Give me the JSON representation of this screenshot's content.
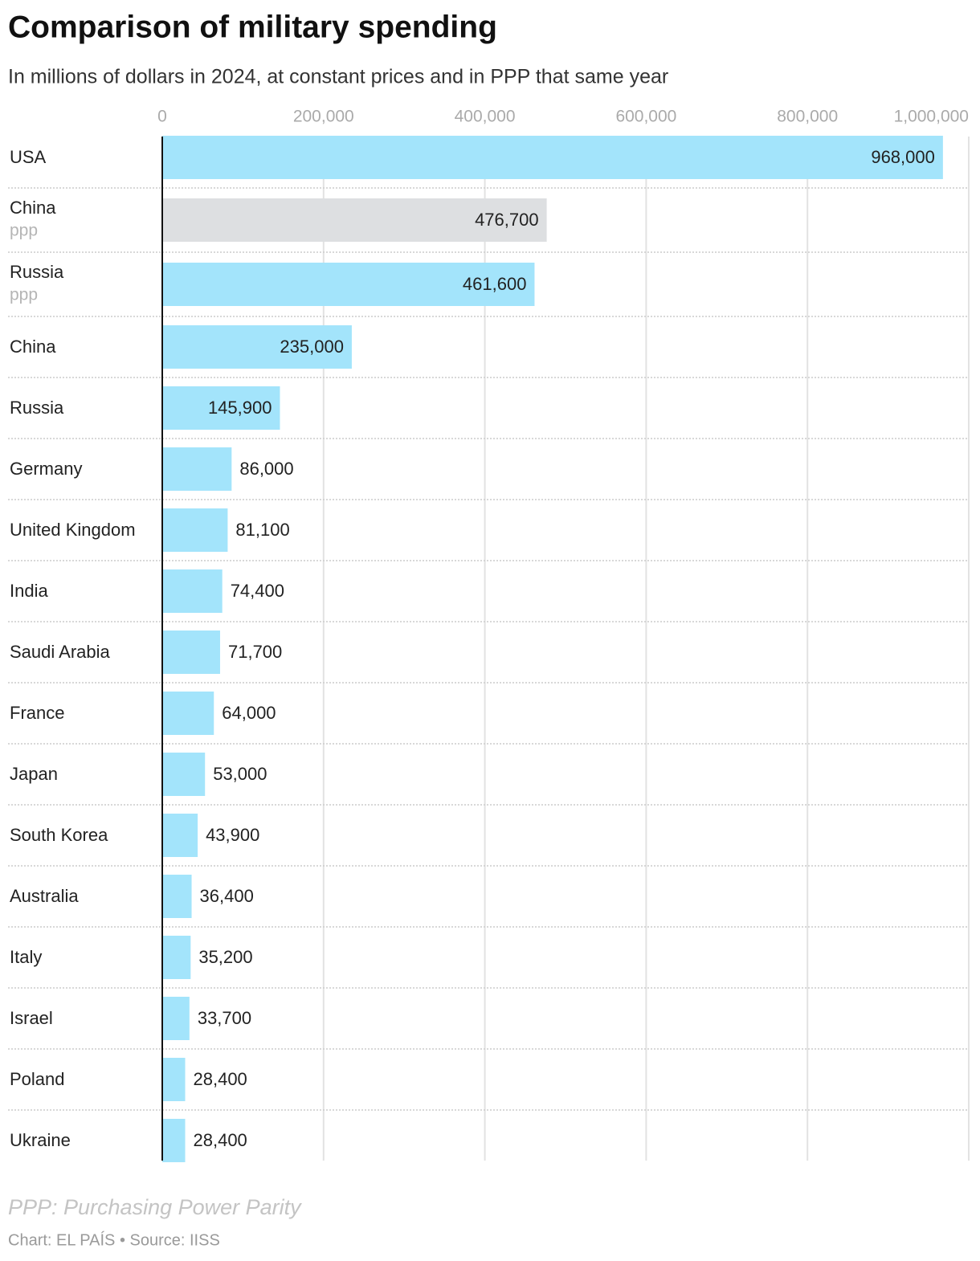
{
  "chart_data": {
    "type": "bar",
    "orientation": "horizontal",
    "title": "Comparison of military spending",
    "subtitle": "In millions of dollars in 2024, at constant prices and in PPP that same year",
    "categories": [
      "USA",
      "China",
      "Russia",
      "China",
      "Russia",
      "Germany",
      "United Kingdom",
      "India",
      "Saudi Arabia",
      "France",
      "Japan",
      "South Korea",
      "Australia",
      "Italy",
      "Israel",
      "Poland",
      "Ukraine"
    ],
    "sublabels": [
      null,
      "ppp",
      "ppp",
      null,
      null,
      null,
      null,
      null,
      null,
      null,
      null,
      null,
      null,
      null,
      null,
      null,
      null
    ],
    "values": [
      968000,
      476700,
      461600,
      235000,
      145900,
      86000,
      81100,
      74400,
      71700,
      64000,
      53000,
      43900,
      36400,
      35200,
      33700,
      28400,
      28400
    ],
    "value_labels": [
      "968,000",
      "476,700",
      "461,600",
      "235,000",
      "145,900",
      "86,000",
      "81,100",
      "74,400",
      "71,700",
      "64,000",
      "53,000",
      "43,900",
      "36,400",
      "35,200",
      "33,700",
      "28,400",
      "28,400"
    ],
    "colors": [
      "#a3e4fb",
      "#dddfe1",
      "#a3e4fb",
      "#a3e4fb",
      "#a3e4fb",
      "#a3e4fb",
      "#a3e4fb",
      "#a3e4fb",
      "#a3e4fb",
      "#a3e4fb",
      "#a3e4fb",
      "#a3e4fb",
      "#a3e4fb",
      "#a3e4fb",
      "#a3e4fb",
      "#a3e4fb",
      "#a3e4fb"
    ],
    "xlim": [
      0,
      1000000
    ],
    "xticks": [
      0,
      {
        "value": 200000,
        "label": "200,000"
      },
      {
        "value": 400000,
        "label": "400,000"
      },
      {
        "value": 600000,
        "label": "600,000"
      },
      {
        "value": 800000,
        "label": "800,000"
      },
      {
        "value": 1000000,
        "label": "1,000,000"
      }
    ],
    "grid": true,
    "note": "PPP: Purchasing Power Parity",
    "source": "Chart: EL PAÍS • Source: IISS"
  }
}
